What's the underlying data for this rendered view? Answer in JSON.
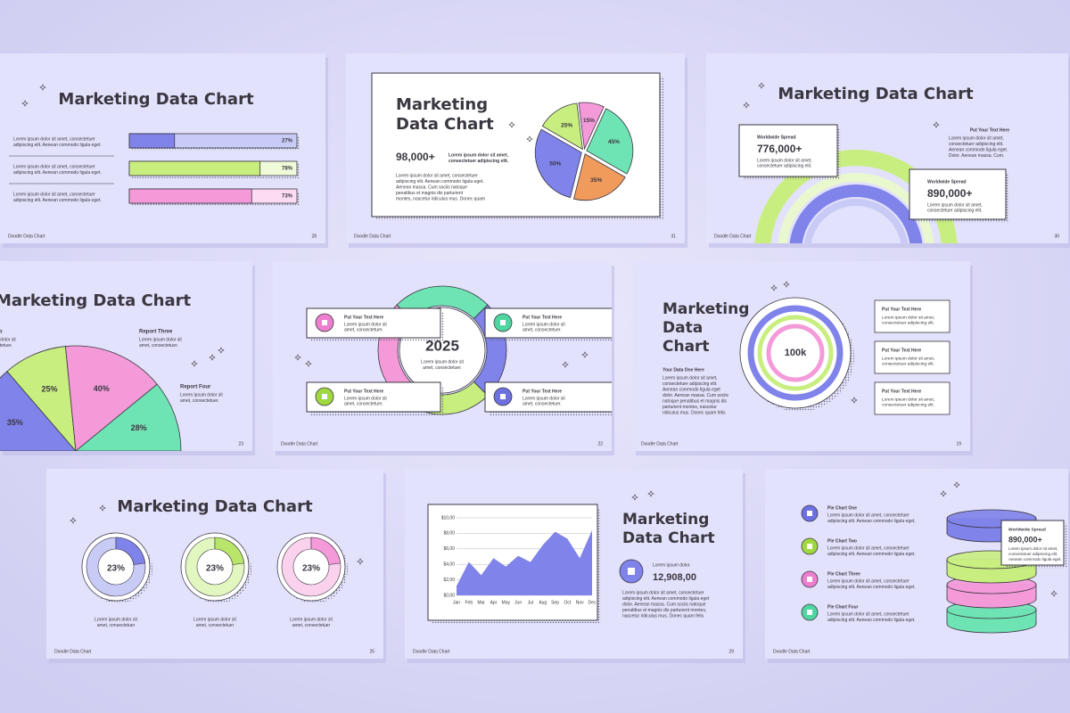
{
  "slides": [
    {
      "title": "Marketing Data Chart",
      "rows": [
        {
          "text": [
            "Lorem ipsum dolor sit amet, consectetuer",
            "adipiscing elit. Aenean commodo ligula eget."
          ],
          "value": 27,
          "value_label": "27%"
        },
        {
          "text": [
            "Lorem ipsum dolor sit amet, consectetuer",
            "adipiscing elit. Aenean commodo ligula eget."
          ],
          "value": 78,
          "value_label": "78%"
        },
        {
          "text": [
            "Lorem ipsum dolor sit amet, consectetuer",
            "adipiscing elit. Aenean commodo ligula eget."
          ],
          "value": 73,
          "value_label": "73%"
        }
      ],
      "footer": "Doodle Data Chart",
      "page": 28
    },
    {
      "title_lines": [
        "Marketing",
        "Data Chart"
      ],
      "stat": "98,000+",
      "stat_text": [
        "Lorem ipsum dolor sit amet,",
        "consectetuer adipiscing elit."
      ],
      "body": [
        "Lorem ipsum dolor sit amet, consectetuer",
        "adipiscing elit. Aenean commodo ligula eget.",
        "Aenean massa. Cum sociis natoque",
        "penatibus et magnis dis parturient",
        "montes, nascetur ridiculus mus. Donec quam"
      ],
      "pie": [
        {
          "value": 25,
          "label": "25%",
          "color": "#c8ee80"
        },
        {
          "value": 15,
          "label": "15%",
          "color": "#f49ad9"
        },
        {
          "value": 45,
          "label": "45%",
          "color": "#6ee3b4"
        },
        {
          "value": 35,
          "label": "35%",
          "color": "#f09a5c"
        },
        {
          "value": 50,
          "label": "50%",
          "color": "#7f83ea"
        }
      ],
      "footer": "Doodle Data Chart",
      "page": 31
    },
    {
      "title": "Marketing Data Chart",
      "cards": [
        {
          "label": "Worldwide Spread",
          "stat": "776,000+",
          "color": "#9fd93f",
          "text": [
            "Lorem ipsum dolor sit amet,",
            "consectetuer adipiscing elit."
          ]
        },
        {
          "label": "Worldwide Spread",
          "stat": "890,000+",
          "color": "#6d71e0",
          "text": [
            "Lorem ipsum dolor sit amet,",
            "consectetuer adipiscing elit."
          ]
        }
      ],
      "side_heading": "Put Your Text Here",
      "side_text": [
        "Lorem ipsum dolor sit amet,",
        "consectetuer adipiscing elit.",
        "Aenean commodo ligula eget.",
        "Dolor. Aenean massa. Cum."
      ],
      "footer": "Doodle Data Chart",
      "page": 30
    },
    {
      "title": "Marketing Data Chart",
      "reports": [
        {
          "name": "Report Two",
          "color": "#9fd93f",
          "text": [
            "Lorem ipsum dolor sit",
            "amet, consectetuer."
          ]
        },
        {
          "name": "Report Three",
          "color": "#ee7fcf",
          "text": [
            "Lorem ipsum dolor sit",
            "amet, consectetuer."
          ]
        },
        {
          "name": "Report Four",
          "color": "#4fd6a0",
          "text": [
            "Lorem ipsum dolor sit",
            "amet, consectetuer."
          ]
        }
      ],
      "pie": [
        {
          "value": 35,
          "label": "35%",
          "color": "#7f83ea"
        },
        {
          "value": 25,
          "label": "25%",
          "color": "#c8ee80"
        },
        {
          "value": 40,
          "label": "40%",
          "color": "#f49ad9"
        },
        {
          "value": 28,
          "label": "28%",
          "color": "#6ee3b4"
        }
      ],
      "page": 23
    },
    {
      "center": "2025",
      "center_text": [
        "Lorem ipsum dolor sit",
        "amet, consectetuer."
      ],
      "items": [
        {
          "heading": "Put Your Text Here",
          "color": "#ee7fcf",
          "text": [
            "Lorem ipsum dolor sit",
            "amet, consectetuer."
          ]
        },
        {
          "heading": "Put Your Text Here",
          "color": "#4fd6a0",
          "text": [
            "Lorem ipsum dolor sit",
            "amet, consectetuer."
          ]
        },
        {
          "heading": "Put Your Text Here",
          "color": "#9fd93f",
          "text": [
            "Lorem ipsum dolor sit",
            "amet, consectetuer."
          ]
        },
        {
          "heading": "Put Your Text Here",
          "color": "#6d71e0",
          "text": [
            "Lorem ipsum dolor sit",
            "amet, consectetuer."
          ]
        }
      ],
      "footer": "Doodle Data Chart",
      "page": 22
    },
    {
      "title_lines": [
        "Marketing",
        "Data",
        "Chart"
      ],
      "subheading": "Your Data One Here",
      "body": [
        "Lorem ipsum dolor sit amet,",
        "consectetuer adipiscing elit.",
        "Aenean commodo ligula eget",
        "dolor. Aenean massa. Cum sociis",
        "natoque penatibus et magnis dis",
        "parturient montes, nascetur",
        "ridiculus mus. Donec quam felis"
      ],
      "center": "100k",
      "items": [
        {
          "heading": "Put Your Text Here",
          "color": "#6d71e0",
          "text": [
            "Lorem ipsum dolor sit amet,",
            "consectetuer adipiscing elit."
          ]
        },
        {
          "heading": "Put Your Text Here",
          "color": "#9fd93f",
          "text": [
            "Lorem ipsum dolor sit amet,",
            "consectetuer adipiscing elit."
          ]
        },
        {
          "heading": "Put Your Text Here",
          "color": "#ee7fcf",
          "text": [
            "Lorem ipsum dolor sit amet,",
            "consectetuer adipiscing elit."
          ]
        }
      ],
      "footer": "Doodle Data Chart",
      "page": 19
    },
    {
      "title": "Marketing Data Chart",
      "donuts": [
        {
          "value": 23,
          "label": "23%",
          "color": "#7f83ea",
          "light": "#c9cbf7",
          "text": [
            "Lorem ipsum dolor sit",
            "amet, consectetuer"
          ]
        },
        {
          "value": 23,
          "label": "23%",
          "color": "#b9e66a",
          "light": "#e2f6c0",
          "text": [
            "Lorem ipsum dolor sit",
            "amet, consectetuer"
          ]
        },
        {
          "value": 23,
          "label": "23%",
          "color": "#f49ad9",
          "light": "#fbd2ee",
          "text": [
            "Lorem ipsum dolor sit",
            "amet, consectetuer"
          ]
        }
      ],
      "footer": "Doodle Data Chart",
      "page": 25
    },
    {
      "chart": {
        "categories": [
          "Jan",
          "Feb",
          "Mar",
          "Apr",
          "May",
          "Jun",
          "Jul",
          "Aug",
          "Sep",
          "Oct",
          "Nov",
          "Dec"
        ],
        "values": [
          1.2,
          4.3,
          2.6,
          4.8,
          3.7,
          5.1,
          4.3,
          6.5,
          8.2,
          7.3,
          4.8,
          8.4
        ],
        "ylim": [
          0,
          10
        ],
        "yticks": [
          {
            "value": 0,
            "label": "$0,00"
          },
          {
            "value": 2,
            "label": "$2,00"
          },
          {
            "value": 4,
            "label": "$4,00"
          },
          {
            "value": 6,
            "label": "$6,00"
          },
          {
            "value": 8,
            "label": "$8,00"
          },
          {
            "value": 10,
            "label": "$10,00"
          }
        ],
        "color": "#7f83ea"
      },
      "title_lines": [
        "Marketing",
        "Data Chart"
      ],
      "stat_label": "Lorem ipsum dolor.",
      "stat": "12,908,00",
      "body": [
        "Lorem ipsum dolor sit amet, consectetuer",
        "adipiscing elit. Aenean commodo ligula eget",
        "dolor. Aenean massa. Cum sociis natoque",
        "penatibus et magnis dis parturient montes,",
        "nascetur ridiculus mus. Donec quam felis"
      ],
      "footer": "Doodle Data Chart",
      "page": 29
    },
    {
      "items": [
        {
          "name": "Pie Chart One",
          "color": "#6d71e0",
          "text": [
            "Lorem ipsum dolor sit amet, consectetuer",
            "adipiscing elit. Aenean commodo ligula eget."
          ]
        },
        {
          "name": "Pie Chart Two",
          "color": "#9fd93f",
          "text": [
            "Lorem ipsum dolor sit amet, consectetuer",
            "adipiscing elit. Aenean commodo ligula eget."
          ]
        },
        {
          "name": "Pie Chart Three",
          "color": "#ee7fcf",
          "text": [
            "Lorem ipsum dolor sit amet, consectetuer",
            "adipiscing elit. Aenean commodo ligula eget."
          ]
        },
        {
          "name": "Pie Chart Four",
          "color": "#4fd6a0",
          "text": [
            "Lorem ipsum dolor sit amet, consectetuer",
            "adipiscing elit. Aenean commodo ligula eget."
          ]
        }
      ],
      "card": {
        "label": "Worldwide Spread",
        "stat": "890,000+",
        "text": [
          "Lorem ipsum dolor sit amet,",
          "consectetuer adipiscing elit.",
          "Aenean commodo ligula eget."
        ]
      },
      "footer": "Doodle Data Chart"
    }
  ]
}
